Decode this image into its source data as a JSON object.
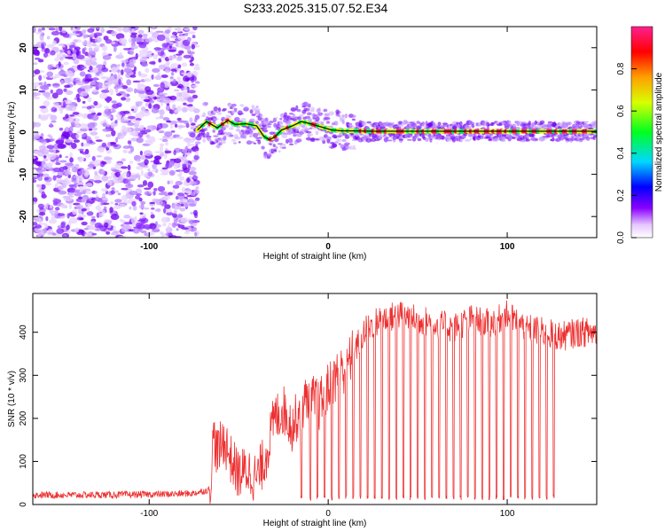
{
  "figure": {
    "title": "S233.2025.315.07.52.E34",
    "colors": {
      "snr_line": "#ee3030",
      "trace_line": "#111111",
      "frame": "#000000",
      "background": "#ffffff"
    }
  },
  "chart_data": [
    {
      "type": "heatmap",
      "title": "S233.2025.315.07.52.E34",
      "xlabel": "Height of straight line (km)",
      "ylabel": "Frequency (Hz)",
      "xlim": [
        -165,
        150
      ],
      "ylim": [
        -25,
        25
      ],
      "xticks": [
        -100,
        0,
        100
      ],
      "yticks": [
        -20,
        -10,
        0,
        10,
        20
      ],
      "colorbar": {
        "label": "Normalized spectral amplitude",
        "ticks": [
          "0.0",
          "0.2",
          "0.4",
          "0.6",
          "0.8"
        ],
        "range": [
          0,
          1
        ],
        "colormap": "rainbow (white → violet → blue → cyan → green → yellow → red → magenta)",
        "position": "right"
      },
      "noise_region_km": [
        -165,
        -73
      ],
      "trace": {
        "description": "Peak-frequency trace",
        "x": [
          -73,
          -68,
          -62,
          -56,
          -52,
          -46,
          -40,
          -36,
          -33,
          -30,
          -26,
          -20,
          -15,
          -10,
          -6,
          -2,
          2,
          8,
          15,
          25,
          40,
          60,
          80,
          100,
          120,
          135,
          150
        ],
        "y": [
          0.5,
          2.5,
          1.0,
          2.8,
          1.8,
          2.0,
          1.5,
          -1.0,
          -1.8,
          -1.2,
          0.5,
          1.5,
          2.5,
          2.0,
          1.5,
          1.0,
          0.5,
          0.3,
          0.3,
          0.2,
          0.2,
          0.2,
          0.2,
          0.2,
          0.2,
          0.2,
          0.2
        ]
      },
      "grid": false
    },
    {
      "type": "line",
      "xlabel": "Height of straight line (km)",
      "ylabel": "SNR (10 * v/v)",
      "xlim": [
        -165,
        150
      ],
      "ylim": [
        0,
        490
      ],
      "xticks": [
        -100,
        0,
        100
      ],
      "yticks": [
        0,
        100,
        200,
        300,
        400
      ],
      "series": [
        {
          "description": "SNR vs height",
          "x": [
            -165,
            -140,
            -110,
            -90,
            -75,
            -66,
            -64,
            -62,
            -58,
            -54,
            -50,
            -45,
            -40,
            -35,
            -30,
            -25,
            -20,
            -15,
            -10,
            -5,
            0,
            5,
            10,
            15,
            20,
            25,
            30,
            40,
            50,
            60,
            70,
            80,
            90,
            100,
            110,
            120,
            130,
            140,
            150
          ],
          "y": [
            22,
            22,
            23,
            24,
            26,
            35,
            160,
            120,
            150,
            100,
            70,
            80,
            60,
            110,
            200,
            220,
            180,
            230,
            250,
            230,
            270,
            300,
            320,
            360,
            400,
            420,
            430,
            440,
            430,
            420,
            410,
            430,
            420,
            440,
            410,
            400,
            390,
            400,
            400
          ],
          "dropouts_km": [
            -15,
            -10,
            -6,
            -2,
            2,
            6,
            10,
            14,
            18,
            22,
            26,
            30,
            34,
            38,
            42,
            46,
            50,
            54,
            58,
            62,
            66,
            70,
            74,
            78,
            82,
            86,
            90,
            94,
            98,
            102,
            106,
            110,
            114,
            118,
            122,
            126
          ]
        }
      ],
      "grid": false
    }
  ]
}
